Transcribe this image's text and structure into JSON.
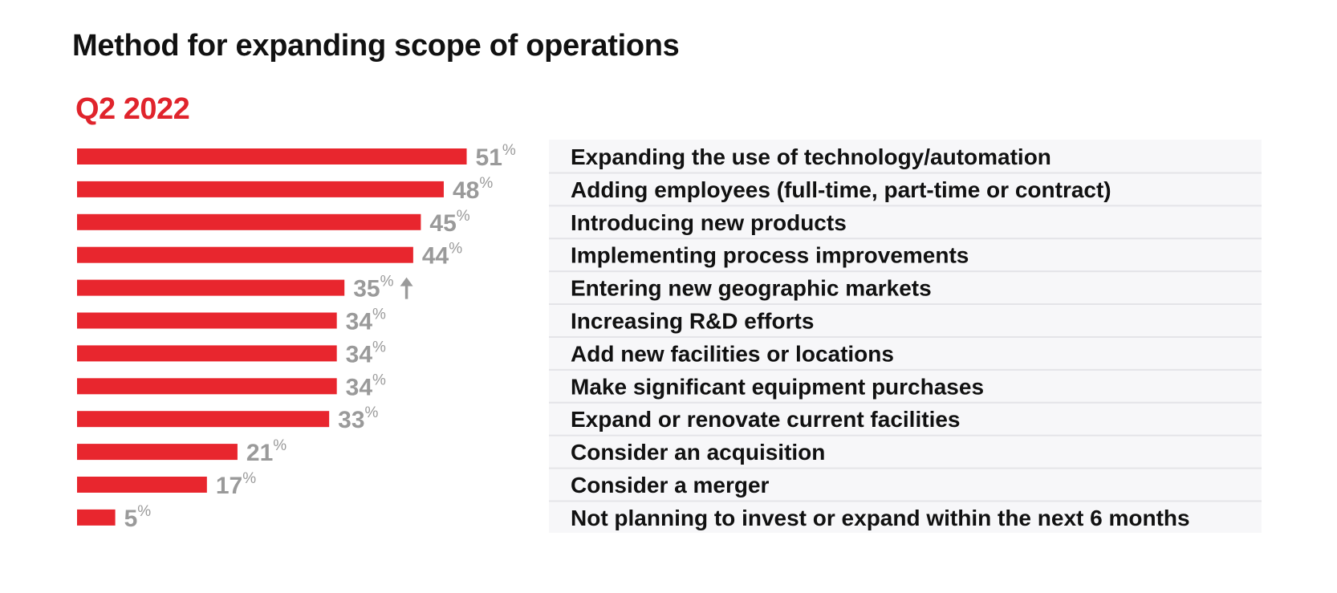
{
  "chart_data": {
    "type": "bar",
    "orientation": "horizontal",
    "title": "Method for expanding scope of operations",
    "subtitle": "Q2 2022",
    "categories": [
      "Expanding the use of technology/automation",
      "Adding employees (full-time, part-time or contract)",
      "Introducing new products",
      "Implementing process improvements",
      "Entering new geographic markets",
      "Increasing R&D efforts",
      "Add new facilities or locations",
      "Make significant equipment purchases",
      "Expand or renovate current facilities",
      "Consider an acquisition",
      "Consider a merger",
      "Not planning to invest or expand within the next 6 months"
    ],
    "values": [
      51,
      48,
      45,
      44,
      35,
      34,
      34,
      34,
      33,
      21,
      17,
      5
    ],
    "value_suffix": "%",
    "trend_up_categories": [
      "Entering new geographic markets"
    ],
    "xlim": [
      0,
      51
    ],
    "grid": false,
    "legend": "none"
  },
  "colors": {
    "bar": "#e8262e",
    "subtitle": "#e0242c",
    "value_label": "#9a9a9a",
    "label_text": "#111111",
    "label_panel": "#f7f7f9",
    "row_divider": "#e4e4e8",
    "trend_arrow": "#9a9a9a"
  },
  "icons": {
    "trend_up": "arrow-up-icon"
  }
}
